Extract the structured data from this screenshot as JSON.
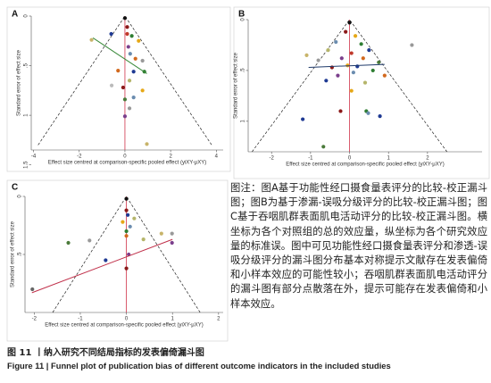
{
  "chart_data": [
    {
      "type": "scatter",
      "panel_label": "A",
      "xlabel": "Effect size centred at comparison-specific pooled effect (yiXY-μXY)",
      "ylabel": "Standard error of effect size",
      "xlim": [
        -4.1,
        4.3
      ],
      "xticks": [
        -4,
        -2,
        0,
        2,
        4
      ],
      "ylim": [
        0,
        1.35
      ],
      "yticks": [
        0,
        {
          "value": 0.5,
          "label": ".5"
        },
        1,
        1.5
      ],
      "y_reversed": true,
      "x": [
        0,
        0.1,
        -1.46,
        -0.6,
        0.1,
        0.3,
        0.6,
        0.15,
        0.23,
        0.46,
        0.77,
        0.85,
        0.38,
        0.2,
        -0.58,
        -0.08,
        0.77,
        0,
        0.38,
        0.2,
        0,
        0.96,
        -0.3
      ],
      "values": [
        0.02,
        0.11,
        0.24,
        0.18,
        0.18,
        0.2,
        0.25,
        0.31,
        0.38,
        0.43,
        0.45,
        0.56,
        0.56,
        0.65,
        0.7,
        0.72,
        0.75,
        0.84,
        0.82,
        0.93,
        1.01,
        1.29,
        0.55
      ],
      "colors": [
        "#111111",
        "#8b1a1a",
        "#c8b46a",
        "#1f3a93",
        "#c0392b",
        "#2e7d32",
        "#e6a817",
        "#7b3f8c",
        "#6a8caf",
        "#d2691e",
        "#999999",
        "#2e7d32",
        "#1f3a93",
        "#b5b56a",
        "#bbbbbb",
        "#8b1a1a",
        "#e6a817",
        "#4a7a3a",
        "#6a8caf",
        "#999999",
        "#7b3f8c",
        "#c8b46a",
        "#d2691e"
      ],
      "fit": {
        "color": "#3a8a3a",
        "x": [
          -1.4,
          0.96
        ],
        "y": [
          0.22,
          0.58
        ]
      },
      "funnel": {
        "x": [
          -3.8,
          0,
          3.8
        ],
        "y": [
          1.3,
          0,
          1.3
        ]
      }
    },
    {
      "type": "scatter",
      "panel_label": "B",
      "xlabel": "Effect size centred at comparison-specific pooled effect (yiXY-μXY)",
      "ylabel": "Standard error of effect size",
      "xlim": [
        -2.6,
        3.4
      ],
      "xticks": [
        -2,
        -1,
        0,
        1,
        2
      ],
      "ylim": [
        0,
        1.3
      ],
      "yticks": [
        0,
        {
          "value": 0.5,
          "label": ".5"
        },
        1
      ],
      "y_reversed": true,
      "x": [
        0,
        -0.1,
        0.15,
        -0.35,
        0.3,
        -0.55,
        0.5,
        0.05,
        -0.2,
        0.35,
        -0.8,
        0.75,
        -0.05,
        0.2,
        -0.45,
        0.6,
        -1.1,
        0.1,
        -0.3,
        0.9,
        -0.6,
        0.4,
        -1.2,
        -0.67,
        0.43,
        0.48,
        0.78,
        -0.23,
        0.05,
        1.6
      ],
      "values": [
        0.03,
        0.12,
        0.16,
        0.22,
        0.24,
        0.3,
        0.3,
        0.33,
        0.38,
        0.38,
        0.4,
        0.42,
        0.45,
        0.46,
        0.47,
        0.5,
        0.35,
        0.52,
        0.55,
        0.55,
        0.6,
        0.62,
        0.98,
        1.25,
        0.9,
        0.92,
        0.95,
        0.9,
        0.7,
        0.25
      ],
      "colors": [
        "#111111",
        "#8b1a1a",
        "#e6a817",
        "#6a8caf",
        "#2e7d32",
        "#b5b56a",
        "#1f3a93",
        "#c0392b",
        "#7b3f8c",
        "#d2691e",
        "#999999",
        "#4a7a3a",
        "#e6a817",
        "#1f3a93",
        "#8b1a1a",
        "#2e7d32",
        "#c8b46a",
        "#6a8caf",
        "#7b3f8c",
        "#d2691e",
        "#1f3a93",
        "#b5b56a",
        "#1f3a93",
        "#4a7a3a",
        "#2e7d32",
        "#6a8caf",
        "#1f3a93",
        "#8b1a1a",
        "#e6a817",
        "#999999"
      ],
      "fit": {
        "color": "#1f3a6a",
        "x": [
          -1.05,
          0.9
        ],
        "y": [
          0.47,
          0.44
        ]
      },
      "funnel": {
        "x": [
          -2.5,
          0,
          2.5
        ],
        "y": [
          1.3,
          0,
          1.3
        ]
      }
    },
    {
      "type": "scatter",
      "panel_label": "C",
      "xlabel": "Effect size centred at comparison-specific pooled effect (yiXY-μXY)",
      "ylabel": "Standard error of effect size",
      "xlim": [
        -2.2,
        2.1
      ],
      "xticks": [
        -2,
        -1,
        0,
        1,
        2
      ],
      "ylim": [
        0,
        1
      ],
      "yticks": [
        0,
        {
          "value": 0.5,
          "label": ".5"
        }
      ],
      "y_reversed": true,
      "x": [
        0,
        0,
        0.03,
        -0.08,
        0.08,
        0.17,
        0,
        0,
        -1.26,
        -0.8,
        0.37,
        0.99,
        0.99,
        0.76,
        -0.45,
        -2.04,
        0,
        0.05
      ],
      "values": [
        0.02,
        0.12,
        0.16,
        0.22,
        0.26,
        0.19,
        0.3,
        0.34,
        0.4,
        0.38,
        0.37,
        0.4,
        0.32,
        0.32,
        0.55,
        0.8,
        0.62,
        0.5
      ],
      "colors": [
        "#111111",
        "#8b1a1a",
        "#1f3a93",
        "#e6a817",
        "#6a8caf",
        "#b5b56a",
        "#2e7d32",
        "#d2691e",
        "#4a7a3a",
        "#999999",
        "#b5b56a",
        "#7b3f8c",
        "#999999",
        "#c8b46a",
        "#1f3a93",
        "#666666",
        "#8b1a1a",
        "#7b3f8c"
      ],
      "fit": {
        "color": "#c0304a",
        "x": [
          -2.05,
          1.0
        ],
        "y": [
          0.83,
          0.37
        ]
      },
      "funnel": {
        "x": [
          -1.6,
          0,
          1.6
        ],
        "y": [
          1,
          0,
          1
        ]
      }
    }
  ],
  "caption": {
    "note": "图注：图A基于功能性经口摄食量表评分的比较-校正漏斗图；图B为基于渗漏-误吸分级评分的比较-校正漏斗图；图C基于吞咽肌群表面肌电活动评分的比较-校正漏斗图。横坐标为各个对照组的总的效应量，纵坐标为各个研究效应量的标准误。图中可见功能性经口摄食量表评分和渗透-误吸分级评分的漏斗图分布基本对称提示文献存在发表偏倚和小样本效应的可能性较小；吞咽肌群表面肌电活动评分的漏斗图有部分点散落在外，提示可能存在发表偏倚和小样本效应。",
    "title_cn": "图 11 丨纳入研究不同结局指标的发表偏倚漏斗图",
    "title_en": "Figure 11 | Funnel plot of publication bias of different outcome indicators in the included studies"
  }
}
